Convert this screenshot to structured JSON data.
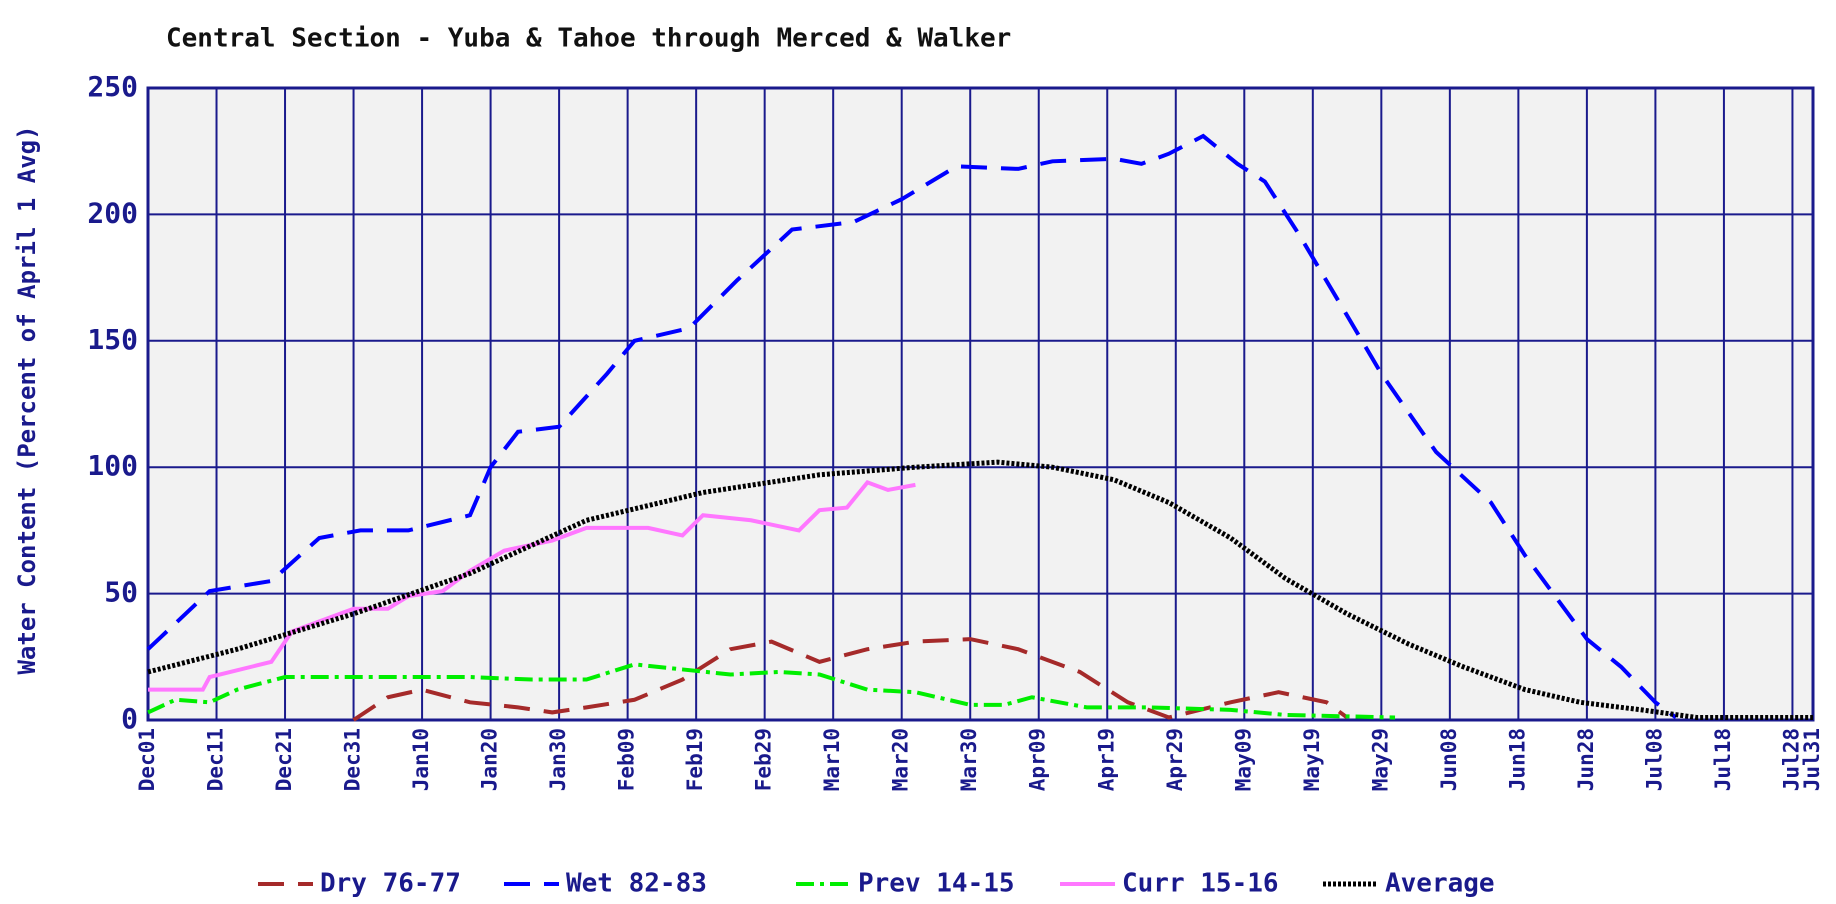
{
  "chart_data": {
    "type": "line",
    "title": "Central Section - Yuba & Tahoe through Merced & Walker",
    "y_label": "Water Content (Percent of April 1 Avg)",
    "xlim": [
      0,
      243
    ],
    "ylim": [
      0,
      250
    ],
    "yticks": [
      0,
      50,
      100,
      150,
      200,
      250
    ],
    "xticks": [
      {
        "value": 0,
        "label": "Dec01"
      },
      {
        "value": 10,
        "label": "Dec11"
      },
      {
        "value": 20,
        "label": "Dec21"
      },
      {
        "value": 30,
        "label": "Dec31"
      },
      {
        "value": 40,
        "label": "Jan10"
      },
      {
        "value": 50,
        "label": "Jan20"
      },
      {
        "value": 60,
        "label": "Jan30"
      },
      {
        "value": 70,
        "label": "Feb09"
      },
      {
        "value": 80,
        "label": "Feb19"
      },
      {
        "value": 90,
        "label": "Feb29"
      },
      {
        "value": 100,
        "label": "Mar10"
      },
      {
        "value": 110,
        "label": "Mar20"
      },
      {
        "value": 120,
        "label": "Mar30"
      },
      {
        "value": 130,
        "label": "Apr09"
      },
      {
        "value": 140,
        "label": "Apr19"
      },
      {
        "value": 150,
        "label": "Apr29"
      },
      {
        "value": 160,
        "label": "May09"
      },
      {
        "value": 170,
        "label": "May19"
      },
      {
        "value": 180,
        "label": "May29"
      },
      {
        "value": 190,
        "label": "Jun08"
      },
      {
        "value": 200,
        "label": "Jun18"
      },
      {
        "value": 210,
        "label": "Jun28"
      },
      {
        "value": 220,
        "label": "Jul08"
      },
      {
        "value": 230,
        "label": "Jul18"
      },
      {
        "value": 240,
        "label": "Jul28"
      },
      {
        "value": 243,
        "label": "Jul31"
      }
    ],
    "grid": true,
    "series": [
      {
        "name": "Dry 76-77",
        "color": "#a52a2a",
        "dash": "dashed",
        "x": [
          30,
          35,
          40,
          47,
          54,
          59,
          64,
          71,
          78,
          85,
          91,
          98,
          105,
          112,
          120,
          127,
          136,
          143,
          149,
          158,
          165,
          172,
          175
        ],
        "values": [
          0,
          9,
          12,
          7,
          5,
          3,
          5,
          8,
          16,
          28,
          31,
          23,
          28,
          31,
          32,
          28,
          19,
          7,
          1,
          7,
          11,
          7,
          1
        ]
      },
      {
        "name": "Wet 82-83",
        "color": "#0000ff",
        "dash": "dashed",
        "x": [
          0,
          9,
          18,
          25,
          31,
          38,
          47,
          50,
          54,
          60,
          67,
          71,
          79,
          86,
          94,
          103,
          110,
          118,
          127,
          132,
          141,
          145,
          149,
          154,
          159,
          163,
          168,
          175,
          180,
          188,
          196,
          201,
          210,
          215,
          220,
          223
        ],
        "values": [
          28,
          51,
          55,
          72,
          75,
          75,
          81,
          100,
          114,
          116,
          137,
          150,
          155,
          174,
          194,
          197,
          206,
          219,
          218,
          221,
          222,
          220,
          224,
          231,
          220,
          213,
          192,
          160,
          137,
          106,
          86,
          65,
          32,
          21,
          7,
          1
        ]
      },
      {
        "name": "Prev 14-15",
        "color": "#00ee00",
        "dash": "dashdot",
        "x": [
          0,
          4,
          9,
          13,
          20,
          30,
          47,
          56,
          64,
          71,
          78,
          85,
          92,
          98,
          105,
          112,
          120,
          125,
          129,
          137,
          146,
          158,
          166,
          182
        ],
        "values": [
          3,
          8,
          7,
          12,
          17,
          17,
          17,
          16,
          16,
          22,
          20,
          18,
          19,
          18,
          12,
          11,
          6,
          6,
          9,
          5,
          5,
          4,
          2,
          1
        ]
      },
      {
        "name": "Curr 15-16",
        "color": "#ff77ff",
        "dash": "solid",
        "x": [
          0,
          8,
          9,
          18,
          21,
          30,
          35,
          38,
          43,
          47,
          52,
          59,
          64,
          73,
          78,
          81,
          88,
          95,
          98,
          102,
          105,
          108,
          112
        ],
        "values": [
          12,
          12,
          17,
          23,
          35,
          44,
          44,
          49,
          51,
          59,
          67,
          71,
          76,
          76,
          73,
          81,
          79,
          75,
          83,
          84,
          94,
          91,
          93
        ]
      },
      {
        "name": "Average",
        "color": "#000000",
        "dash": "dotted",
        "x": [
          0,
          13,
          30,
          47,
          64,
          81,
          98,
          112,
          124,
          132,
          141,
          149,
          158,
          166,
          175,
          184,
          192,
          201,
          209,
          218,
          226,
          243
        ],
        "values": [
          19,
          28,
          42,
          58,
          79,
          90,
          97,
          100,
          102,
          100,
          95,
          86,
          72,
          56,
          42,
          30,
          21,
          12,
          7,
          4,
          1,
          1
        ]
      }
    ]
  }
}
